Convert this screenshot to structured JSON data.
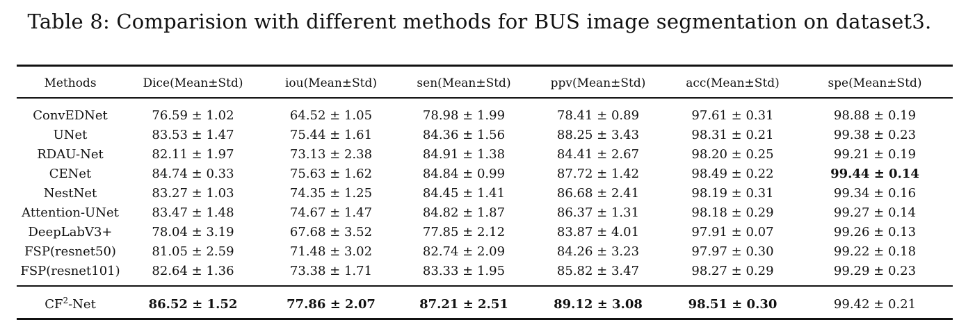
{
  "caption": "Table 8: Comparision with different methods for BUS image segmentation on dataset3.",
  "columns": [
    "Methods",
    "Dice(Mean±Std)",
    "iou(Mean±Std)",
    "sen(Mean±Std)",
    "ppv(Mean±Std)",
    "acc(Mean±Std)",
    "spe(Mean±Std)"
  ],
  "rows": [
    {
      "method": "ConvEDNet",
      "values": [
        "76.59 ± 1.02",
        "64.52 ± 1.05",
        "78.98 ± 1.99",
        "78.41 ± 0.89",
        "97.61 ± 0.31",
        "98.88 ± 0.19"
      ],
      "bold": []
    },
    {
      "method": "UNet",
      "values": [
        "83.53 ± 1.47",
        "75.44 ± 1.61",
        "84.36 ± 1.56",
        "88.25 ± 3.43",
        "98.31 ± 0.21",
        "99.38 ± 0.23"
      ],
      "bold": []
    },
    {
      "method": "RDAU-Net",
      "values": [
        "82.11 ± 1.97",
        "73.13 ± 2.38",
        "84.91 ± 1.38",
        "84.41 ± 2.67",
        "98.20 ± 0.25",
        "99.21 ± 0.19"
      ],
      "bold": []
    },
    {
      "method": "CENet",
      "values": [
        "84.74 ± 0.33",
        "75.63 ± 1.62",
        "84.84 ± 0.99",
        "87.72 ± 1.42",
        "98.49 ± 0.22",
        "99.44 ± 0.14"
      ],
      "bold": [
        5
      ]
    },
    {
      "method": "NestNet",
      "values": [
        "83.27 ± 1.03",
        "74.35 ± 1.25",
        "84.45 ± 1.41",
        "86.68 ± 2.41",
        "98.19 ± 0.31",
        "99.34 ± 0.16"
      ],
      "bold": []
    },
    {
      "method": "Attention-UNet",
      "values": [
        "83.47 ± 1.48",
        "74.67 ± 1.47",
        "84.82 ± 1.87",
        "86.37 ± 1.31",
        "98.18 ± 0.29",
        "99.27 ± 0.14"
      ],
      "bold": []
    },
    {
      "method": "DeepLabV3+",
      "values": [
        "78.04 ± 3.19",
        "67.68 ± 3.52",
        "77.85 ± 2.12",
        "83.87 ± 4.01",
        "97.91 ± 0.07",
        "99.26 ± 0.13"
      ],
      "bold": []
    },
    {
      "method": "FSP(resnet50)",
      "values": [
        "81.05 ± 2.59",
        "71.48 ± 3.02",
        "82.74 ± 2.09",
        "84.26 ± 3.23",
        "97.97 ± 0.30",
        "99.22 ± 0.18"
      ],
      "bold": []
    },
    {
      "method": "FSP(resnet101)",
      "values": [
        "82.64 ± 1.36",
        "73.38 ± 1.71",
        "83.33 ± 1.95",
        "85.82 ± 3.47",
        "98.27 ± 0.29",
        "99.29 ± 0.23"
      ],
      "bold": []
    }
  ],
  "final_row": {
    "method_base": "CF",
    "method_sup": "2",
    "method_suffix": "-Net",
    "values": [
      "86.52 ± 1.52",
      "77.86 ± 2.07",
      "87.21 ± 2.51",
      "89.12 ± 3.08",
      "98.51 ± 0.30",
      "99.42 ± 0.21"
    ],
    "bold": [
      0,
      1,
      2,
      3,
      4
    ]
  }
}
